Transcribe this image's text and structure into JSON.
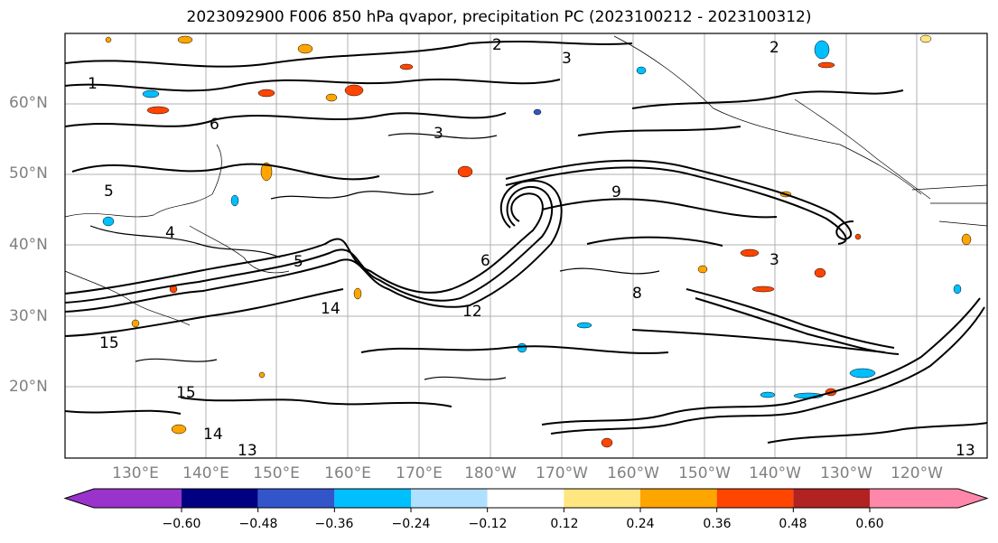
{
  "title": "2023092900 F006 850 hPa qvapor, precipitation PC (2023100212 - 2023100312)",
  "map": {
    "lat_labels": [
      "60°N",
      "50°N",
      "40°N",
      "30°N",
      "20°N"
    ],
    "lon_labels": [
      "130°E",
      "140°E",
      "150°E",
      "160°E",
      "170°E",
      "180°W",
      "170°W",
      "160°W",
      "150°W",
      "140°W",
      "130°W",
      "120°W"
    ],
    "grid": true,
    "contour_labels": [
      "1",
      "2",
      "2",
      "3",
      "3",
      "3",
      "4",
      "5",
      "5",
      "6",
      "6",
      "8",
      "9",
      "12",
      "13",
      "13",
      "14",
      "14",
      "15",
      "15"
    ]
  },
  "colorbar": {
    "ticks": [
      "−0.60",
      "−0.48",
      "−0.36",
      "−0.24",
      "−0.12",
      "0.12",
      "0.24",
      "0.36",
      "0.48",
      "0.60"
    ],
    "colors": [
      "#9933cc",
      "#000080",
      "#3355cc",
      "#00bfff",
      "#b0e0ff",
      "#ffffff",
      "#ffe680",
      "#ffa500",
      "#ff4500",
      "#b22222",
      "#ff88aa"
    ],
    "extend": "both"
  }
}
